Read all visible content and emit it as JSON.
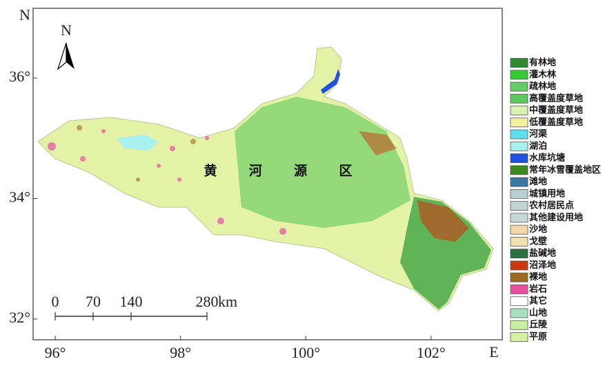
{
  "axes": {
    "north_label": "N",
    "east_label": "E",
    "lat_ticks": [
      {
        "value": 36,
        "label": "36°"
      },
      {
        "value": 34,
        "label": "34°"
      },
      {
        "value": 32,
        "label": "32°"
      }
    ],
    "lon_ticks": [
      {
        "value": 96,
        "label": "96°"
      },
      {
        "value": 98,
        "label": "98°"
      },
      {
        "value": 100,
        "label": "100°"
      },
      {
        "value": 102,
        "label": "102°"
      }
    ]
  },
  "compass": "N",
  "scale_bar": {
    "ticks": [
      0,
      70,
      140,
      280
    ],
    "unit": "km"
  },
  "region_label": "黄 河 源 区",
  "legend": [
    {
      "label": "有林地",
      "color": "#2f8a2f"
    },
    {
      "label": "灌木林",
      "color": "#33cc33"
    },
    {
      "label": "疏林地",
      "color": "#66cc66"
    },
    {
      "label": "高覆盖度草地",
      "color": "#5fc85f"
    },
    {
      "label": "中覆盖度草地",
      "color": "#d8f0b0"
    },
    {
      "label": "低覆盖度草地",
      "color": "#f0f0a0"
    },
    {
      "label": "河渠",
      "color": "#5ce0f0"
    },
    {
      "label": "湖泊",
      "color": "#a8f0f0"
    },
    {
      "label": "水库坑塘",
      "color": "#2050e0"
    },
    {
      "label": "常年冰雪覆盖地区",
      "color": "#3a8a20"
    },
    {
      "label": "滩地",
      "color": "#3a78a8"
    },
    {
      "label": "城镇用地",
      "color": "#b8d0d0"
    },
    {
      "label": "农村居民点",
      "color": "#c0d4d4"
    },
    {
      "label": "其他建设用地",
      "color": "#c8d8d8"
    },
    {
      "label": "沙地",
      "color": "#f0d8a8"
    },
    {
      "label": "戈壁",
      "color": "#f0e0b0"
    },
    {
      "label": "盐碱地",
      "color": "#2a7040"
    },
    {
      "label": "沼泽地",
      "color": "#c83a10"
    },
    {
      "label": "裸地",
      "color": "#a06a20"
    },
    {
      "label": "岩石",
      "color": "#e850a0"
    },
    {
      "label": "其它",
      "color": "#ffffff"
    },
    {
      "label": "山地",
      "color": "#a8e0c0"
    },
    {
      "label": "丘陵",
      "color": "#c8f0a0"
    },
    {
      "label": "平原",
      "color": "#d8f0a0"
    }
  ]
}
